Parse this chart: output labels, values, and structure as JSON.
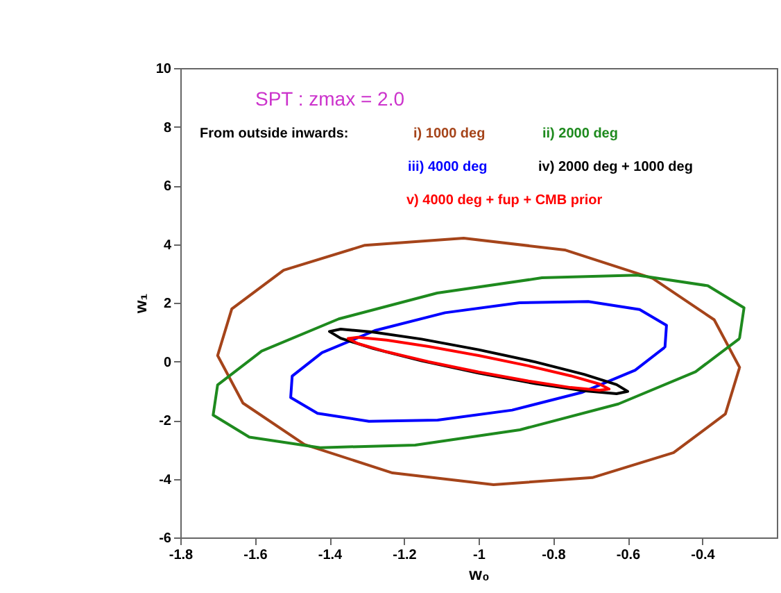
{
  "chart_data": {
    "type": "line",
    "title": "SPT : zmax = 2.0",
    "xlabel": "w₀",
    "ylabel": "w₁",
    "annotations": [
      "From outside inwards:"
    ],
    "xlim": [
      -1.8,
      -0.2
    ],
    "xticks": [
      -1.8,
      -1.6,
      -1.4,
      -1.2,
      -1,
      -0.8,
      -0.6,
      -0.4
    ],
    "ylim": [
      -6,
      10
    ],
    "yticks": [
      -6,
      -4,
      -2,
      0,
      2,
      4,
      6,
      8,
      10
    ],
    "grid": false,
    "marker": "none",
    "line_style": "solid",
    "series": [
      {
        "name": "i) 1000 deg",
        "color": "#a5441a",
        "x": [
          -0.3,
          -0.368,
          -0.533,
          -0.769,
          -1.04,
          -1.305,
          -1.523,
          -1.662,
          -1.7,
          -1.632,
          -1.467,
          -1.231,
          -0.96,
          -0.695,
          -0.477,
          -0.338,
          -0.301
        ],
        "values": [
          -0.2,
          1.42,
          2.83,
          3.8,
          4.2,
          3.96,
          3.11,
          1.79,
          0.2,
          -1.42,
          -2.83,
          -3.8,
          -4.2,
          -3.96,
          -3.11,
          -1.79,
          -0.25
        ]
      },
      {
        "name": "ii) 2000 deg",
        "color": "#1e8a1e",
        "x": [
          -0.3,
          -0.288,
          -0.385,
          -0.575,
          -0.83,
          -1.111,
          -1.375,
          -1.582,
          -1.7,
          -1.712,
          -1.615,
          -1.425,
          -1.17,
          -0.889,
          -0.625,
          -0.418,
          -0.302
        ],
        "values": [
          0.8,
          1.83,
          2.58,
          2.94,
          2.85,
          2.33,
          1.45,
          0.35,
          -0.8,
          -1.83,
          -2.58,
          -2.94,
          -2.85,
          -2.33,
          -1.45,
          -0.35,
          0.76
        ]
      },
      {
        "name": "iii) 4000 deg",
        "color": "#0000ff",
        "x": [
          -0.5,
          -0.496,
          -0.568,
          -0.706,
          -0.89,
          -1.09,
          -1.276,
          -1.42,
          -1.5,
          -1.504,
          -1.432,
          -1.294,
          -1.11,
          -0.91,
          -0.724,
          -0.58,
          -0.503
        ],
        "values": [
          0.5,
          1.23,
          1.77,
          2.04,
          2.0,
          1.66,
          1.06,
          0.3,
          -0.5,
          -1.23,
          -1.77,
          -2.04,
          -2.0,
          -1.66,
          -1.06,
          -0.3,
          0.46
        ]
      },
      {
        "name": "iv) 2000 deg + 1000 deg",
        "color": "#000000",
        "x": [
          -0.6,
          -0.63,
          -0.717,
          -0.847,
          -1.0,
          -1.153,
          -1.283,
          -1.37,
          -1.4,
          -1.37,
          -1.283,
          -1.153,
          -1.0,
          -0.847,
          -0.717,
          -0.63,
          -0.603
        ],
        "values": [
          -1.02,
          -0.79,
          -0.44,
          -0.02,
          0.4,
          0.76,
          1.0,
          1.1,
          1.02,
          0.79,
          0.44,
          0.02,
          -0.4,
          -0.76,
          -1.0,
          -1.1,
          -1.03
        ]
      },
      {
        "name": "v) 4000 deg + fup + CMB prior",
        "color": "#ff0000",
        "x": [
          -0.65,
          -0.676,
          -0.753,
          -0.866,
          -1.0,
          -1.134,
          -1.247,
          -1.324,
          -1.35,
          -1.324,
          -1.247,
          -1.134,
          -1.0,
          -0.866,
          -0.753,
          -0.676,
          -0.653
        ],
        "values": [
          -0.94,
          -0.77,
          -0.49,
          -0.15,
          0.2,
          0.51,
          0.73,
          0.82,
          0.78,
          0.61,
          0.33,
          -0.01,
          -0.36,
          -0.67,
          -0.89,
          -0.98,
          -0.945
        ]
      }
    ]
  }
}
